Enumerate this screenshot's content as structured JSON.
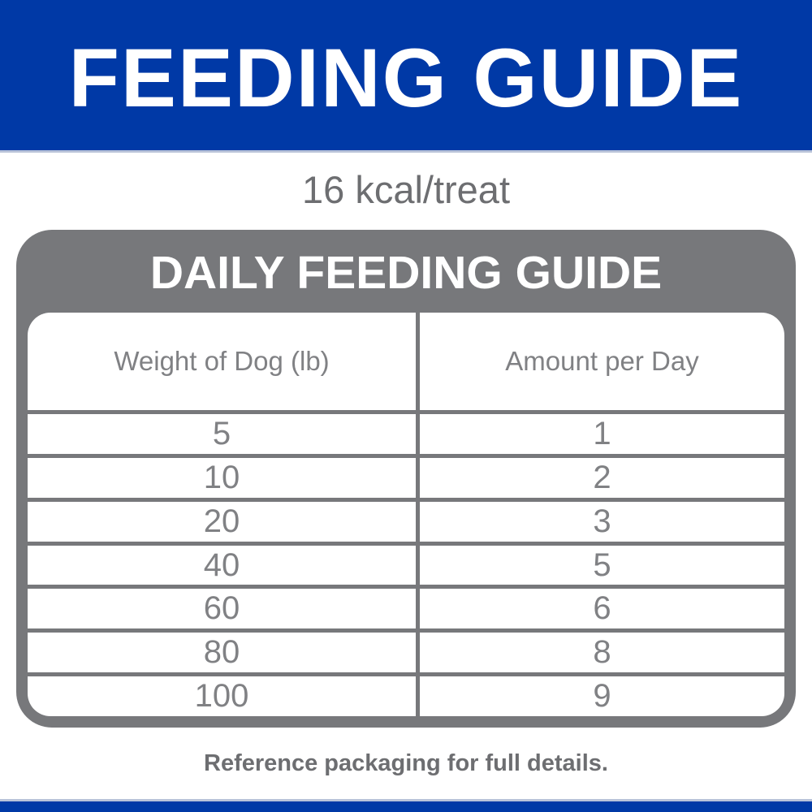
{
  "colors": {
    "brand_blue": "#0039A6",
    "box_gray": "#77787B",
    "table_text_gray": "#808184",
    "note_gray": "#6D6E71",
    "divider_light": "#B9C3D9"
  },
  "header": {
    "title": "FEEDING GUIDE"
  },
  "subtitle": {
    "kcal_text": "16 kcal/treat"
  },
  "guide": {
    "title": "DAILY FEEDING GUIDE",
    "table": {
      "columns": [
        "Weight of Dog (lb)",
        "Amount per Day"
      ],
      "rows": [
        {
          "weight": "5",
          "amount": "1"
        },
        {
          "weight": "10",
          "amount": "2"
        },
        {
          "weight": "20",
          "amount": "3"
        },
        {
          "weight": "40",
          "amount": "5"
        },
        {
          "weight": "60",
          "amount": "6"
        },
        {
          "weight": "80",
          "amount": "8"
        },
        {
          "weight": "100",
          "amount": "9"
        }
      ]
    }
  },
  "footer": {
    "note": "Reference packaging for full details."
  },
  "chart_data": {
    "type": "table",
    "title": "DAILY FEEDING GUIDE",
    "columns": [
      "Weight of Dog (lb)",
      "Amount per Day"
    ],
    "rows": [
      [
        5,
        1
      ],
      [
        10,
        2
      ],
      [
        20,
        3
      ],
      [
        40,
        5
      ],
      [
        60,
        6
      ],
      [
        80,
        8
      ],
      [
        100,
        9
      ]
    ],
    "annotations": [
      "16 kcal/treat",
      "Reference packaging for full details."
    ],
    "legend_position": "none",
    "grid": true
  }
}
